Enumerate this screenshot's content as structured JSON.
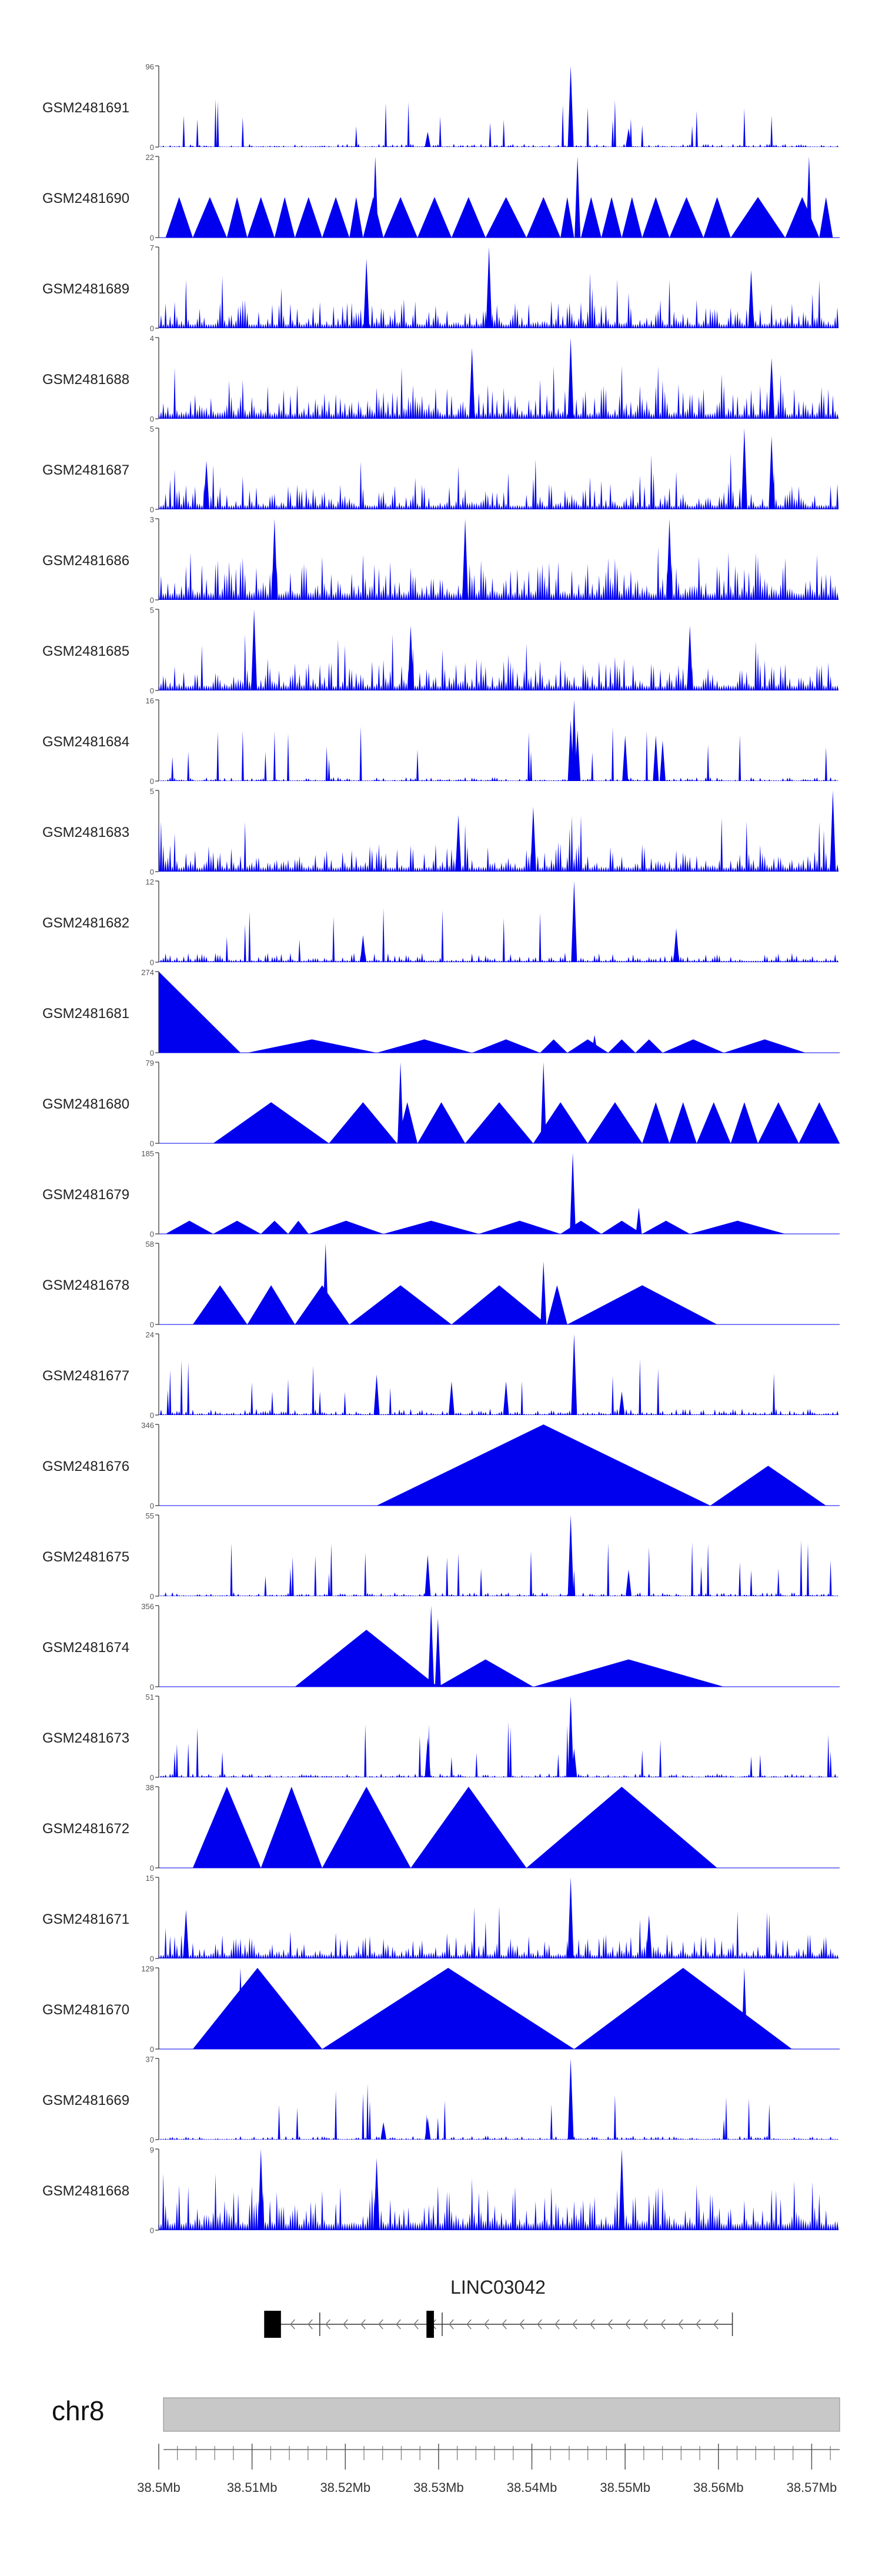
{
  "chart_data": {
    "type": "area",
    "title": "",
    "xlabel": "",
    "ylabel": "",
    "colors": {
      "signal": "#0000ee",
      "axis": "#555555",
      "label": "#222222",
      "ideogram": "#c8c8c8"
    },
    "genomic_range": {
      "chromosome": "chr8",
      "start_mb": 38.5,
      "end_mb": 38.573
    },
    "x_tick_labels": [
      "38.5Mb",
      "38.51Mb",
      "38.52Mb",
      "38.53Mb",
      "38.54Mb",
      "38.55Mb",
      "38.56Mb",
      "38.57Mb"
    ],
    "x_ticks_mb": [
      38.5,
      38.51,
      38.52,
      38.53,
      38.54,
      38.55,
      38.56,
      38.57
    ],
    "gene": {
      "name": "LINC03042",
      "strand": "-",
      "start_mb": 38.5113,
      "end_mb": 38.5615,
      "exons_mb": [
        [
          38.5113,
          38.5131
        ],
        [
          38.5287,
          38.5295
        ]
      ]
    },
    "tracks": [
      {
        "name": "GSM2481691",
        "ymax": 96,
        "style": "dense",
        "seed": 11,
        "level": 0.04,
        "peaks": [
          [
            0.605,
            96
          ],
          [
            0.395,
            18
          ],
          [
            0.69,
            22
          ]
        ],
        "segments": []
      },
      {
        "name": "GSM2481690",
        "ymax": 22,
        "style": "triangles",
        "seed": 12,
        "peaks": [
          [
            0.318,
            22
          ],
          [
            0.615,
            22
          ],
          [
            0.955,
            22
          ]
        ],
        "segments": [
          [
            0.01,
            0.05,
            11
          ],
          [
            0.05,
            0.1,
            11
          ],
          [
            0.1,
            0.13,
            11
          ],
          [
            0.13,
            0.17,
            11
          ],
          [
            0.17,
            0.2,
            11
          ],
          [
            0.2,
            0.24,
            11
          ],
          [
            0.24,
            0.28,
            11
          ],
          [
            0.28,
            0.3,
            11
          ],
          [
            0.3,
            0.33,
            11
          ],
          [
            0.33,
            0.38,
            11
          ],
          [
            0.38,
            0.43,
            11
          ],
          [
            0.43,
            0.48,
            11
          ],
          [
            0.48,
            0.54,
            11
          ],
          [
            0.54,
            0.59,
            11
          ],
          [
            0.59,
            0.61,
            11
          ],
          [
            0.62,
            0.65,
            11
          ],
          [
            0.65,
            0.68,
            11
          ],
          [
            0.68,
            0.71,
            11
          ],
          [
            0.71,
            0.75,
            11
          ],
          [
            0.75,
            0.8,
            11
          ],
          [
            0.8,
            0.84,
            11
          ],
          [
            0.84,
            0.92,
            11
          ],
          [
            0.92,
            0.97,
            11
          ],
          [
            0.97,
            0.99,
            11
          ]
        ]
      },
      {
        "name": "GSM2481689",
        "ymax": 7,
        "style": "dense",
        "seed": 13,
        "level": 0.35,
        "peaks": [
          [
            0.485,
            7
          ],
          [
            0.305,
            6
          ],
          [
            0.87,
            5
          ]
        ],
        "segments": []
      },
      {
        "name": "GSM2481688",
        "ymax": 4,
        "style": "dense",
        "seed": 14,
        "level": 0.42,
        "peaks": [
          [
            0.605,
            4
          ],
          [
            0.46,
            3.5
          ],
          [
            0.9,
            3
          ]
        ],
        "segments": []
      },
      {
        "name": "GSM2481687",
        "ymax": 5,
        "style": "dense",
        "seed": 15,
        "level": 0.32,
        "peaks": [
          [
            0.86,
            5
          ],
          [
            0.9,
            4.5
          ],
          [
            0.07,
            3
          ]
        ],
        "segments": []
      },
      {
        "name": "GSM2481686",
        "ymax": 3,
        "style": "dense",
        "seed": 16,
        "level": 0.55,
        "peaks": [
          [
            0.17,
            3
          ],
          [
            0.45,
            3
          ],
          [
            0.75,
            3
          ]
        ],
        "segments": []
      },
      {
        "name": "GSM2481685",
        "ymax": 5,
        "style": "dense",
        "seed": 17,
        "level": 0.4,
        "peaks": [
          [
            0.14,
            5
          ],
          [
            0.37,
            4
          ],
          [
            0.78,
            4
          ]
        ],
        "segments": []
      },
      {
        "name": "GSM2481684",
        "ymax": 16,
        "style": "dense",
        "seed": 18,
        "level": 0.05,
        "peaks": [
          [
            0.61,
            16
          ],
          [
            0.605,
            12
          ],
          [
            0.615,
            10
          ],
          [
            0.685,
            9
          ],
          [
            0.73,
            9
          ],
          [
            0.74,
            8
          ]
        ],
        "segments": []
      },
      {
        "name": "GSM2481683",
        "ymax": 5,
        "style": "dense",
        "seed": 19,
        "level": 0.35,
        "peaks": [
          [
            0.99,
            5
          ],
          [
            0.55,
            4
          ],
          [
            0.44,
            3.5
          ]
        ],
        "segments": []
      },
      {
        "name": "GSM2481682",
        "ymax": 12,
        "style": "dense",
        "seed": 20,
        "level": 0.12,
        "peaks": [
          [
            0.61,
            12
          ],
          [
            0.76,
            5
          ],
          [
            0.3,
            4
          ]
        ],
        "segments": []
      },
      {
        "name": "GSM2481681",
        "ymax": 274,
        "style": "triangles",
        "seed": 21,
        "peaks": [
          [
            0.64,
            60
          ]
        ],
        "segments": [
          [
            0.0,
            0.12,
            274
          ],
          [
            0.13,
            0.32,
            45
          ],
          [
            0.32,
            0.46,
            45
          ],
          [
            0.46,
            0.56,
            45
          ],
          [
            0.56,
            0.6,
            45
          ],
          [
            0.6,
            0.66,
            45
          ],
          [
            0.66,
            0.7,
            45
          ],
          [
            0.7,
            0.74,
            45
          ],
          [
            0.74,
            0.83,
            45
          ],
          [
            0.83,
            0.95,
            45
          ]
        ]
      },
      {
        "name": "GSM2481680",
        "ymax": 79,
        "style": "triangles",
        "seed": 22,
        "peaks": [
          [
            0.355,
            79
          ],
          [
            0.565,
            79
          ]
        ],
        "segments": [
          [
            0.08,
            0.25,
            40
          ],
          [
            0.25,
            0.35,
            40
          ],
          [
            0.35,
            0.38,
            40
          ],
          [
            0.38,
            0.45,
            40
          ],
          [
            0.45,
            0.55,
            40
          ],
          [
            0.55,
            0.63,
            40
          ],
          [
            0.63,
            0.71,
            40
          ],
          [
            0.71,
            0.75,
            40
          ],
          [
            0.75,
            0.79,
            40
          ],
          [
            0.79,
            0.84,
            40
          ],
          [
            0.84,
            0.88,
            40
          ],
          [
            0.88,
            0.94,
            40
          ],
          [
            0.94,
            1.0,
            40
          ]
        ]
      },
      {
        "name": "GSM2481679",
        "ymax": 185,
        "style": "triangles",
        "seed": 23,
        "peaks": [
          [
            0.608,
            185
          ],
          [
            0.705,
            60
          ]
        ],
        "segments": [
          [
            0.01,
            0.08,
            30
          ],
          [
            0.08,
            0.15,
            30
          ],
          [
            0.15,
            0.19,
            30
          ],
          [
            0.19,
            0.22,
            30
          ],
          [
            0.22,
            0.33,
            30
          ],
          [
            0.33,
            0.47,
            30
          ],
          [
            0.47,
            0.59,
            30
          ],
          [
            0.59,
            0.65,
            30
          ],
          [
            0.65,
            0.71,
            30
          ],
          [
            0.71,
            0.78,
            30
          ],
          [
            0.78,
            0.92,
            30
          ]
        ]
      },
      {
        "name": "GSM2481678",
        "ymax": 58,
        "style": "triangles",
        "seed": 24,
        "peaks": [
          [
            0.245,
            58
          ],
          [
            0.565,
            45
          ]
        ],
        "segments": [
          [
            0.05,
            0.13,
            28
          ],
          [
            0.13,
            0.2,
            28
          ],
          [
            0.2,
            0.28,
            28
          ],
          [
            0.28,
            0.43,
            28
          ],
          [
            0.43,
            0.57,
            28
          ],
          [
            0.57,
            0.6,
            28
          ],
          [
            0.6,
            0.82,
            28
          ]
        ]
      },
      {
        "name": "GSM2481677",
        "ymax": 24,
        "style": "dense",
        "seed": 25,
        "level": 0.08,
        "peaks": [
          [
            0.61,
            24
          ],
          [
            0.32,
            12
          ],
          [
            0.43,
            10
          ],
          [
            0.51,
            10
          ],
          [
            0.68,
            7
          ]
        ],
        "segments": []
      },
      {
        "name": "GSM2481676",
        "ymax": 346,
        "style": "triangles",
        "seed": 26,
        "peaks": [],
        "segments": [
          [
            0.32,
            0.81,
            346
          ],
          [
            0.81,
            0.98,
            170
          ]
        ]
      },
      {
        "name": "GSM2481675",
        "ymax": 55,
        "style": "dense",
        "seed": 27,
        "level": 0.05,
        "peaks": [
          [
            0.605,
            55
          ],
          [
            0.395,
            28
          ],
          [
            0.69,
            18
          ]
        ],
        "segments": []
      },
      {
        "name": "GSM2481674",
        "ymax": 356,
        "style": "triangles",
        "seed": 28,
        "peaks": [
          [
            0.4,
            356
          ],
          [
            0.41,
            300
          ]
        ],
        "segments": [
          [
            0.2,
            0.41,
            250
          ],
          [
            0.41,
            0.55,
            120
          ],
          [
            0.55,
            0.83,
            120
          ]
        ]
      },
      {
        "name": "GSM2481673",
        "ymax": 51,
        "style": "dense",
        "seed": 29,
        "level": 0.05,
        "peaks": [
          [
            0.605,
            51
          ],
          [
            0.395,
            25
          ],
          [
            0.61,
            18
          ]
        ],
        "segments": []
      },
      {
        "name": "GSM2481672",
        "ymax": 38,
        "style": "triangles",
        "seed": 30,
        "peaks": [],
        "segments": [
          [
            0.05,
            0.15,
            38
          ],
          [
            0.15,
            0.24,
            38
          ],
          [
            0.24,
            0.37,
            38
          ],
          [
            0.37,
            0.54,
            38
          ],
          [
            0.54,
            0.82,
            38
          ]
        ]
      },
      {
        "name": "GSM2481671",
        "ymax": 15,
        "style": "dense",
        "seed": 31,
        "level": 0.3,
        "peaks": [
          [
            0.605,
            15
          ],
          [
            0.04,
            9
          ],
          [
            0.72,
            8
          ]
        ],
        "segments": []
      },
      {
        "name": "GSM2481670",
        "ymax": 129,
        "style": "triangles",
        "seed": 32,
        "peaks": [
          [
            0.12,
            129
          ],
          [
            0.86,
            129
          ]
        ],
        "segments": [
          [
            0.05,
            0.24,
            129
          ],
          [
            0.24,
            0.61,
            129
          ],
          [
            0.61,
            0.93,
            129
          ]
        ]
      },
      {
        "name": "GSM2481669",
        "ymax": 37,
        "style": "dense",
        "seed": 33,
        "level": 0.05,
        "peaks": [
          [
            0.605,
            37
          ],
          [
            0.395,
            10
          ],
          [
            0.33,
            8
          ]
        ],
        "segments": []
      },
      {
        "name": "GSM2481668",
        "ymax": 9,
        "style": "dense",
        "seed": 34,
        "level": 0.55,
        "peaks": [
          [
            0.15,
            9
          ],
          [
            0.68,
            9
          ],
          [
            0.32,
            8
          ]
        ],
        "segments": []
      }
    ]
  }
}
